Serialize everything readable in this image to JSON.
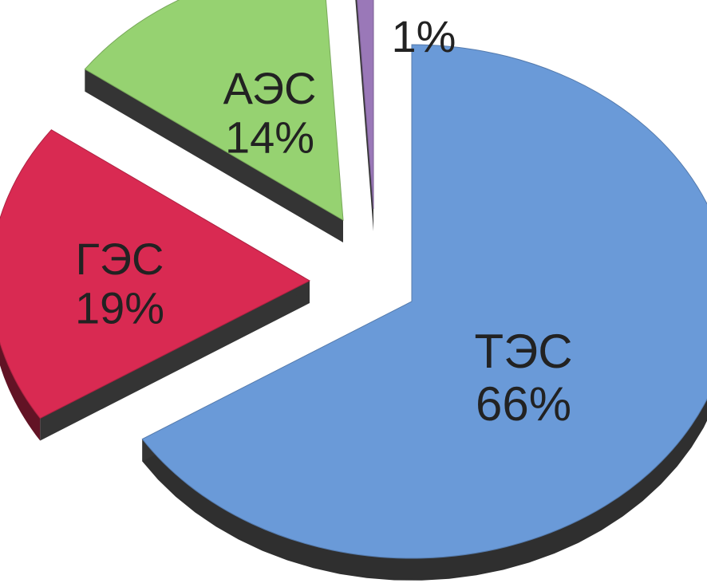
{
  "chart_data": {
    "type": "pie",
    "title": "",
    "categories": [
      "ТЭС",
      "ГЭС",
      "АЭС",
      ""
    ],
    "values": [
      66,
      19,
      14,
      1
    ],
    "value_labels": [
      "66%",
      "19%",
      "14%",
      "1%"
    ],
    "colors": [
      "#6a9ad8",
      "#d92a52",
      "#96d271",
      "#9a78b8"
    ],
    "legend": "none",
    "style": "3d-exploded"
  }
}
